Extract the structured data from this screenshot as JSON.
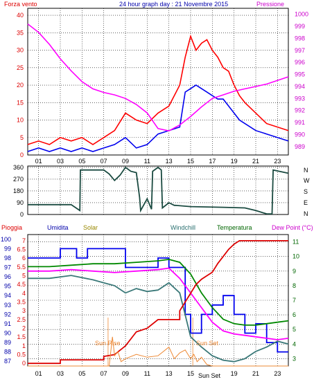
{
  "colors": {
    "wind_speed": "#ff0000",
    "wind_avg": "#0000ee",
    "pressure": "#ff00ff",
    "wind_dir": "#1a4a40",
    "humidity": "#0000ee",
    "solar": "#ee8833",
    "windchill": "#3a7878",
    "temperature": "#008800",
    "rain": "#dd0000",
    "dew_point": "#ff00ff",
    "frame_text": "#0000aa"
  },
  "chart_data": [
    {
      "type": "line",
      "title": "24 hour graph day : 21 Novembre 2015",
      "ylabel_left": "Forza vento",
      "ylabel_right": "Pressione",
      "x_ticks": [
        "01",
        "03",
        "05",
        "07",
        "09",
        "11",
        "13",
        "15",
        "17",
        "19",
        "21",
        "23"
      ],
      "y_left_ticks": [
        0,
        5,
        10,
        15,
        20,
        25,
        30,
        35,
        40
      ],
      "y_left_range": [
        0,
        42
      ],
      "y_right_ticks": [
        989,
        990,
        991,
        992,
        993,
        994,
        995,
        996,
        997,
        998,
        999,
        1000
      ],
      "y_right_range": [
        988.3,
        1000.5
      ],
      "x_range": [
        0,
        24
      ],
      "series": [
        {
          "key": "wind_speed",
          "color_key": "wind_speed",
          "axis": "left",
          "x": [
            0,
            1,
            2,
            3,
            4,
            5,
            6,
            7,
            8,
            9,
            10,
            11,
            12,
            13,
            14,
            14.5,
            15,
            15.5,
            16,
            16.5,
            17,
            17.5,
            18,
            18.5,
            19,
            19.5,
            20,
            21,
            22,
            23,
            24
          ],
          "y": [
            3,
            4,
            3,
            5,
            4,
            5,
            3,
            5,
            7,
            12,
            10,
            9,
            12,
            14,
            20,
            28,
            34,
            30,
            32,
            33,
            30,
            28,
            25,
            24,
            20,
            17,
            15,
            12,
            9,
            8,
            7
          ]
        },
        {
          "key": "wind_avg",
          "color_key": "wind_avg",
          "axis": "left",
          "x": [
            0,
            1,
            2,
            3,
            4,
            5,
            6,
            7,
            8,
            9,
            10,
            11,
            12,
            13,
            14,
            14.5,
            15,
            15.5,
            16,
            16.5,
            17,
            17.5,
            18,
            18.5,
            19,
            19.5,
            20,
            21,
            22,
            23,
            24
          ],
          "y": [
            1,
            2,
            1,
            2,
            1,
            2,
            1,
            2,
            3,
            5,
            2,
            3,
            6,
            7,
            8,
            18,
            19,
            20,
            19,
            18,
            17,
            16,
            16,
            14,
            12,
            10,
            9,
            7,
            6,
            5,
            4
          ]
        },
        {
          "key": "pressure",
          "color_key": "pressure",
          "axis": "right",
          "x": [
            0,
            1,
            2,
            3,
            4,
            5,
            6,
            7,
            8,
            9,
            10,
            11,
            12,
            13,
            14,
            15,
            16,
            17,
            18,
            19,
            20,
            21,
            22,
            23,
            24
          ],
          "y": [
            999.2,
            998.5,
            997.5,
            996.3,
            995.3,
            994.4,
            993.8,
            993.5,
            993.3,
            993.0,
            992.5,
            991.8,
            990.5,
            990.3,
            990.8,
            991.5,
            992.3,
            993.0,
            993.3,
            993.6,
            993.8,
            994.0,
            994.2,
            994.5,
            994.8
          ]
        }
      ]
    },
    {
      "type": "line",
      "ylabel_right": [
        "N",
        "W",
        "S",
        "E",
        "N"
      ],
      "y_left_ticks": [
        0,
        90,
        180,
        270,
        360
      ],
      "y_left_range": [
        0,
        370
      ],
      "x_range": [
        0,
        24
      ],
      "series": [
        {
          "key": "wind_direction",
          "color_key": "wind_dir",
          "x": [
            0,
            4,
            4.8,
            4.85,
            7,
            7.5,
            8,
            8.5,
            9,
            9.5,
            10,
            10.3,
            10.4,
            11,
            11.4,
            11.5,
            12,
            12.3,
            12.4,
            13,
            13.5,
            13.6,
            15,
            18,
            20,
            21,
            22,
            22.5,
            22.6,
            24
          ],
          "y": [
            75,
            75,
            30,
            340,
            340,
            310,
            260,
            300,
            360,
            330,
            320,
            130,
            30,
            120,
            40,
            330,
            360,
            340,
            50,
            90,
            70,
            70,
            60,
            55,
            50,
            30,
            5,
            5,
            340,
            315
          ]
        }
      ]
    },
    {
      "type": "line",
      "labels": [
        "Pioggia",
        "Umidita",
        "Solar",
        "Windchill",
        "Temperatura",
        "Dew Point (°C)"
      ],
      "y_hum_ticks": [
        87,
        88,
        89,
        90,
        91,
        92,
        93,
        94,
        95,
        96,
        97,
        98,
        99,
        100
      ],
      "y_rain_ticks": [
        0,
        0.5,
        1,
        1.5,
        2,
        2.5,
        3,
        3.5,
        4,
        4.5,
        5,
        5.5,
        6,
        6.5,
        7
      ],
      "y_temp_ticks": [
        3,
        4,
        5,
        6,
        7,
        8,
        9,
        10,
        11
      ],
      "y_temp_range": [
        2.5,
        11.5
      ],
      "annotations": [
        "Sun Rise",
        "Sun Set",
        "Sun Set"
      ],
      "x_range": [
        0,
        24
      ],
      "series": [
        {
          "key": "humidity",
          "color_key": "humidity",
          "axis": "hum",
          "x": [
            0,
            3,
            3,
            4.5,
            4.5,
            5.5,
            5.5,
            9,
            9,
            12,
            12,
            13,
            13,
            14.5,
            14.5,
            15,
            15,
            16,
            16,
            17,
            17,
            18,
            18,
            19,
            19,
            20,
            20,
            21,
            21,
            22,
            22,
            23,
            23,
            24
          ],
          "y": [
            98,
            98,
            99,
            99,
            98,
            98,
            99,
            99,
            97,
            97,
            98,
            98,
            97,
            97,
            92,
            92,
            90,
            90,
            92,
            92,
            93,
            93,
            94,
            94,
            92,
            92,
            90,
            90,
            91,
            91,
            89,
            89,
            88,
            88
          ]
        },
        {
          "key": "windchill",
          "color_key": "windchill",
          "axis": "temp",
          "x": [
            0,
            2,
            4,
            6,
            7,
            8,
            9,
            10,
            11,
            12,
            13,
            14,
            14.5,
            15,
            16,
            17,
            18,
            19,
            20,
            21,
            22,
            23,
            24
          ],
          "y": [
            8.5,
            8.5,
            8.7,
            8.4,
            8.2,
            8.0,
            7.5,
            7.8,
            7.6,
            7.7,
            8.2,
            7.5,
            6,
            4.5,
            3.8,
            3.2,
            2.9,
            2.8,
            3.0,
            3.5,
            3.8,
            4.2,
            4.0
          ]
        },
        {
          "key": "temperature",
          "color_key": "temperature",
          "axis": "temp",
          "x": [
            0,
            2,
            4,
            6,
            8,
            10,
            12,
            13,
            14,
            15,
            16,
            17,
            18,
            19,
            20,
            21,
            22,
            23,
            24
          ],
          "y": [
            9.3,
            9.3,
            9.4,
            9.5,
            9.5,
            9.6,
            9.7,
            9.8,
            9.6,
            8.8,
            7.5,
            6.5,
            5.7,
            5.4,
            5.3,
            5.3,
            5.4,
            5.5,
            5.6
          ]
        },
        {
          "key": "dew_point",
          "color_key": "dew_point",
          "axis": "temp",
          "x": [
            0,
            2,
            4,
            6,
            8,
            10,
            12,
            13,
            14,
            15,
            16,
            17,
            18,
            19,
            20,
            21,
            22,
            23,
            24
          ],
          "y": [
            9.0,
            9.0,
            9.1,
            9.0,
            8.9,
            9.0,
            9.1,
            9.2,
            8.5,
            7.5,
            6.5,
            5.5,
            4.9,
            4.7,
            4.6,
            4.5,
            4.4,
            4.3,
            4.4
          ]
        },
        {
          "key": "rain",
          "color_key": "rain",
          "axis": "rain",
          "x": [
            0,
            3,
            3,
            7,
            7,
            8,
            9,
            10,
            11,
            12,
            13,
            14,
            14,
            15,
            15.5,
            16,
            16.5,
            17,
            17.5,
            18,
            18.5,
            19,
            19.5,
            20,
            24
          ],
          "y": [
            0,
            0,
            0.2,
            0.2,
            0.4,
            0.5,
            1.0,
            1.8,
            2.0,
            2.5,
            2.5,
            2.5,
            3.0,
            4.0,
            4.5,
            4.8,
            5.0,
            5.2,
            5.7,
            6.1,
            6.5,
            6.8,
            7.0,
            7.0,
            7.0
          ]
        },
        {
          "key": "solar",
          "color_key": "solar",
          "axis": "temp",
          "x": [
            0,
            7.5,
            7.8,
            8.0,
            8.3,
            8.6,
            9,
            10,
            11,
            12,
            13,
            13.5,
            14,
            14.5,
            15,
            15.3,
            15.6,
            16,
            16.5,
            17,
            24
          ],
          "y": [
            2.5,
            2.5,
            4.5,
            3.2,
            3.5,
            2.8,
            3.0,
            3.3,
            3.1,
            3.2,
            3.8,
            3.0,
            3.4,
            3.6,
            3.0,
            3.3,
            2.8,
            3.1,
            2.6,
            2.5,
            2.5
          ]
        }
      ]
    }
  ]
}
